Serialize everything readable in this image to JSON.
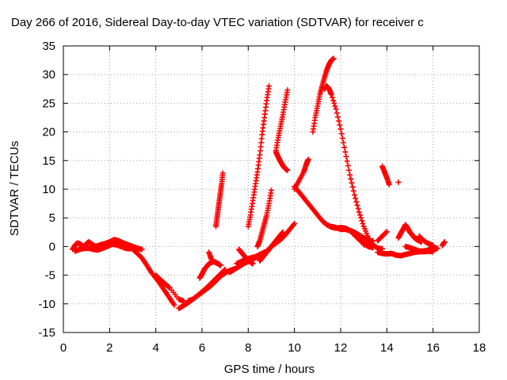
{
  "chart_data": {
    "type": "scatter",
    "title": "Day 266 of 2016, Sidereal Day-to-day VTEC variation (SDTVAR) for receiver c",
    "xlabel": "GPS time / hours",
    "ylabel": "SDTVAR / TECUs",
    "xlim": [
      0,
      18
    ],
    "ylim": [
      -15,
      35
    ],
    "x_ticks": [
      0,
      2,
      4,
      6,
      8,
      10,
      12,
      14,
      16,
      18
    ],
    "y_ticks": [
      -15,
      -10,
      -5,
      0,
      5,
      10,
      15,
      20,
      25,
      30,
      35
    ],
    "grid": true,
    "marker": "+",
    "color": "#ff0000",
    "series": [
      {
        "x": [
          0.4,
          0.5,
          0.6,
          0.7,
          0.8,
          0.9,
          1.0,
          1.1,
          1.2,
          1.4,
          1.6,
          1.8,
          2.0,
          2.2,
          2.4,
          2.6,
          2.8,
          3.0,
          3.2,
          3.4
        ],
        "y": [
          -0.5,
          0.2,
          0.6,
          0.5,
          0.2,
          0.0,
          0.5,
          0.8,
          0.5,
          0.0,
          0.3,
          0.5,
          0.8,
          1.2,
          1.0,
          0.6,
          0.3,
          0.0,
          -0.3,
          -0.5
        ]
      },
      {
        "x": [
          0.5,
          0.7,
          0.9,
          1.1,
          1.3,
          1.5,
          1.7,
          1.9,
          2.1,
          2.3,
          2.5,
          2.7,
          2.9
        ],
        "y": [
          -0.8,
          -0.5,
          -0.3,
          -0.3,
          -0.5,
          -0.6,
          -0.3,
          0.0,
          0.4,
          0.3,
          0.0,
          -0.3,
          -0.4
        ]
      },
      {
        "x": [
          3.0,
          3.2,
          3.4,
          3.6,
          3.8,
          4.0,
          4.2,
          4.4,
          4.6,
          4.8
        ],
        "y": [
          -0.5,
          -1.2,
          -2.0,
          -3.2,
          -4.5,
          -5.5,
          -6.6,
          -7.8,
          -9.0,
          -10.2
        ]
      },
      {
        "x": [
          4.0,
          4.2,
          4.4,
          4.6,
          5.0,
          5.2
        ],
        "y": [
          -5.0,
          -5.8,
          -6.5,
          -7.2,
          -9.2,
          -9.5
        ]
      },
      {
        "x": [
          5.0,
          5.2,
          5.4,
          5.6,
          5.8,
          6.0,
          6.2,
          6.4,
          6.6,
          6.8,
          7.0,
          7.2,
          7.4
        ],
        "y": [
          -10.8,
          -10.3,
          -9.8,
          -9.2,
          -8.6,
          -8.0,
          -7.4,
          -6.8,
          -6.0,
          -5.2,
          -4.6,
          -4.2,
          -3.9
        ]
      },
      {
        "x": [
          5.4,
          5.6,
          5.8,
          6.0,
          6.2,
          6.4,
          6.6,
          6.8,
          7.0
        ],
        "y": [
          -9.5,
          -9.2,
          -8.6,
          -7.9,
          -7.2,
          -6.4,
          -5.6,
          -4.8,
          -4.0
        ]
      },
      {
        "x": [
          5.9,
          6.0,
          6.1,
          6.2,
          6.3,
          6.4,
          6.5,
          6.6,
          6.7,
          6.8
        ],
        "y": [
          -5.5,
          -4.8,
          -4.0,
          -3.5,
          -3.0,
          -2.8,
          -2.6,
          -2.8,
          -3.0,
          -3.3
        ]
      },
      {
        "x": [
          6.3,
          6.4
        ],
        "y": [
          -1.0,
          -2.2
        ]
      },
      {
        "x": [
          6.6,
          6.65,
          6.7,
          6.75,
          6.8,
          6.85,
          6.9
        ],
        "y": [
          3.5,
          5.0,
          6.5,
          8.0,
          9.5,
          11.0,
          12.8
        ]
      },
      {
        "x": [
          7.2,
          7.4,
          7.6,
          7.8,
          8.0,
          8.2,
          8.4,
          8.6,
          8.8,
          9.0,
          9.2,
          9.4,
          9.6,
          9.8,
          10.0
        ],
        "y": [
          -4.5,
          -4.0,
          -3.5,
          -3.0,
          -2.6,
          -2.2,
          -1.8,
          -1.3,
          -0.8,
          0.0,
          0.6,
          1.2,
          2.0,
          3.0,
          4.0
        ]
      },
      {
        "x": [
          7.5,
          7.7,
          7.9,
          8.1,
          8.3,
          8.5,
          8.7
        ],
        "y": [
          -3.0,
          -2.6,
          -2.3,
          -2.0,
          -1.8,
          -1.4,
          -1.0
        ]
      },
      {
        "x": [
          7.6,
          7.7,
          7.8,
          7.9,
          8.0,
          8.1,
          8.2
        ],
        "y": [
          -0.5,
          -1.0,
          -1.5,
          -2.0,
          -2.4,
          -2.7,
          -3.0
        ]
      },
      {
        "x": [
          8.0,
          8.1,
          8.2,
          8.3,
          8.4,
          8.5,
          8.6,
          8.7,
          8.8,
          8.9
        ],
        "y": [
          3.5,
          5.5,
          8.0,
          10.5,
          13.0,
          16.0,
          19.5,
          22.5,
          25.5,
          28.0
        ]
      },
      {
        "x": [
          8.4,
          8.5,
          8.6,
          8.7,
          8.8,
          8.9,
          9.0
        ],
        "y": [
          0.0,
          1.0,
          2.5,
          4.0,
          5.5,
          7.5,
          9.8
        ]
      },
      {
        "x": [
          8.5,
          8.6,
          8.7,
          8.8,
          8.9,
          9.0,
          9.1,
          9.2,
          9.3,
          9.4,
          9.5
        ],
        "y": [
          -2.5,
          -2.0,
          -1.5,
          -1.0,
          -0.5,
          0.0,
          0.5,
          1.0,
          1.5,
          2.0,
          2.5
        ]
      },
      {
        "x": [
          9.2,
          9.3,
          9.4,
          9.5,
          9.6,
          9.7
        ],
        "y": [
          16.8,
          19.0,
          21.0,
          23.0,
          25.2,
          27.3
        ]
      },
      {
        "x": [
          9.2,
          9.3,
          9.4,
          9.5,
          9.6,
          9.7
        ],
        "y": [
          16.5,
          15.6,
          14.8,
          14.1,
          13.6,
          13.3
        ]
      },
      {
        "x": [
          10.0,
          10.2,
          10.4,
          10.5,
          10.6
        ],
        "y": [
          10.0,
          11.5,
          13.0,
          14.2,
          15.2
        ]
      },
      {
        "x": [
          10.0,
          10.2,
          10.4,
          10.6,
          10.8,
          11.0,
          11.2,
          11.4,
          11.6,
          11.8,
          12.0,
          12.2,
          12.4,
          12.6,
          12.8,
          13.0,
          13.2,
          13.4
        ],
        "y": [
          10.5,
          9.5,
          8.5,
          7.5,
          6.5,
          5.5,
          4.5,
          3.8,
          3.4,
          3.2,
          3.3,
          3.2,
          2.8,
          2.0,
          1.2,
          0.5,
          0.0,
          -0.2
        ]
      },
      {
        "x": [
          10.8,
          10.9,
          11.0,
          11.1,
          11.2,
          11.3,
          11.4,
          11.5,
          11.6,
          11.7
        ],
        "y": [
          20.0,
          22.5,
          24.5,
          26.5,
          28.0,
          29.5,
          30.8,
          31.8,
          32.5,
          32.8
        ]
      },
      {
        "x": [
          11.3,
          11.4,
          11.5,
          11.6,
          11.8,
          12.0,
          12.2,
          12.4,
          12.6,
          12.8,
          13.0,
          13.2,
          13.4,
          13.6,
          13.8
        ],
        "y": [
          27.5,
          28.0,
          27.5,
          26.5,
          24.0,
          20.5,
          16.5,
          12.5,
          9.0,
          6.0,
          3.5,
          1.5,
          0.3,
          -0.3,
          -0.4
        ]
      },
      {
        "x": [
          11.6,
          11.8,
          12.0,
          12.2,
          12.4,
          12.6,
          12.8,
          13.0,
          13.2
        ],
        "y": [
          3.5,
          3.3,
          3.0,
          3.0,
          2.8,
          2.5,
          2.0,
          1.5,
          1.0
        ]
      },
      {
        "x": [
          13.0,
          13.2,
          13.4
        ],
        "y": [
          0.3,
          0.6,
          1.0
        ]
      },
      {
        "x": [
          13.6,
          13.8,
          14.0,
          14.2,
          14.4,
          14.6,
          14.8,
          15.0,
          15.2,
          15.4,
          15.6,
          15.8,
          16.0
        ],
        "y": [
          -1.0,
          -1.2,
          -1.3,
          -1.2,
          -1.5,
          -1.6,
          -1.4,
          -1.2,
          -1.0,
          -0.9,
          -0.9,
          -0.8,
          -0.9
        ]
      },
      {
        "x": [
          13.8,
          13.9,
          14.0,
          14.1
        ],
        "y": [
          14.0,
          13.0,
          12.0,
          10.8
        ]
      },
      {
        "x": [
          13.6,
          13.8,
          14.0
        ],
        "y": [
          1.0,
          1.8,
          2.6
        ]
      },
      {
        "x": [
          14.5
        ],
        "y": [
          11.2
        ]
      },
      {
        "x": [
          14.5,
          14.6,
          14.7,
          14.8
        ],
        "y": [
          1.5,
          2.3,
          3.0,
          3.7
        ]
      },
      {
        "x": [
          14.8,
          14.9,
          15.0,
          15.1,
          15.2,
          15.3,
          15.4,
          15.5
        ],
        "y": [
          3.8,
          3.2,
          2.5,
          2.0,
          1.5,
          1.2,
          1.0,
          0.8
        ]
      },
      {
        "x": [
          14.8,
          15.0,
          15.2,
          15.4,
          15.6,
          15.8,
          16.0,
          16.2
        ],
        "y": [
          0.0,
          -0.2,
          -0.5,
          -0.8,
          -0.8,
          -0.6,
          -0.4,
          -0.3
        ]
      },
      {
        "x": [
          15.4,
          15.6,
          15.8,
          16.0
        ],
        "y": [
          1.8,
          1.0,
          0.5,
          0.2
        ]
      },
      {
        "x": [
          16.4,
          16.5
        ],
        "y": [
          0.2,
          0.8
        ]
      }
    ]
  }
}
